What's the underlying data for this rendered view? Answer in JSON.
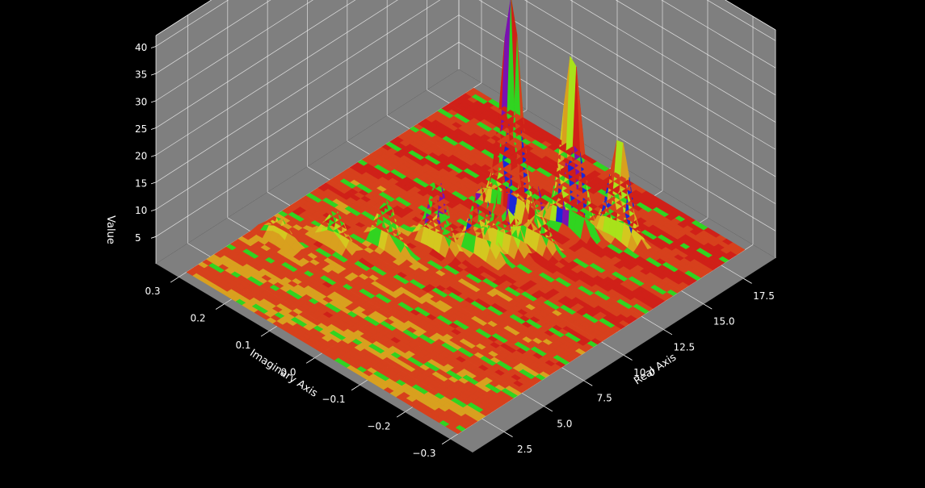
{
  "chart_data": {
    "type": "surface3d",
    "title": "",
    "xlabel": "Real Axis",
    "ylabel": "Imaginary Axis",
    "zlabel": "Value",
    "xlim": [
      0.5,
      19.5
    ],
    "ylim": [
      -0.35,
      0.35
    ],
    "zlim": [
      0,
      42
    ],
    "xticks": [
      2.5,
      5.0,
      7.5,
      10.0,
      12.5,
      15.0,
      17.5
    ],
    "xtick_labels": [
      "2.5",
      "5.0",
      "7.5",
      "10.0",
      "12.5",
      "15.0",
      "17.5"
    ],
    "yticks": [
      -0.3,
      -0.2,
      -0.1,
      0.0,
      0.1,
      0.2,
      0.3
    ],
    "ytick_labels": [
      "−0.3",
      "−0.2",
      "−0.1",
      "0.0",
      "0.1",
      "0.2",
      "0.3"
    ],
    "zticks": [
      5,
      10,
      15,
      20,
      25,
      30,
      35,
      40
    ],
    "ztick_labels": [
      "5",
      "10",
      "15",
      "20",
      "25",
      "30",
      "35",
      "40"
    ],
    "grid": true,
    "colormap": "prism",
    "pane_color": "#7f7f7f",
    "background": "#000000",
    "surface_extent": {
      "x": [
        1,
        19
      ],
      "y": [
        -0.3,
        0.3
      ]
    },
    "peaks": [
      {
        "x": 14.0,
        "y": 0.04,
        "z": 39
      },
      {
        "x": 15.0,
        "y": -0.06,
        "z": 32
      },
      {
        "x": 16.0,
        "y": -0.13,
        "z": 18
      },
      {
        "x": 12.0,
        "y": -0.02,
        "z": 14
      },
      {
        "x": 13.0,
        "y": -0.05,
        "z": 11
      },
      {
        "x": 11.0,
        "y": 0.0,
        "z": 12
      },
      {
        "x": 10.0,
        "y": 0.06,
        "z": 12
      },
      {
        "x": 8.5,
        "y": 0.12,
        "z": 8
      },
      {
        "x": 7.0,
        "y": 0.18,
        "z": 6
      },
      {
        "x": 5.5,
        "y": 0.25,
        "z": 4
      }
    ]
  }
}
